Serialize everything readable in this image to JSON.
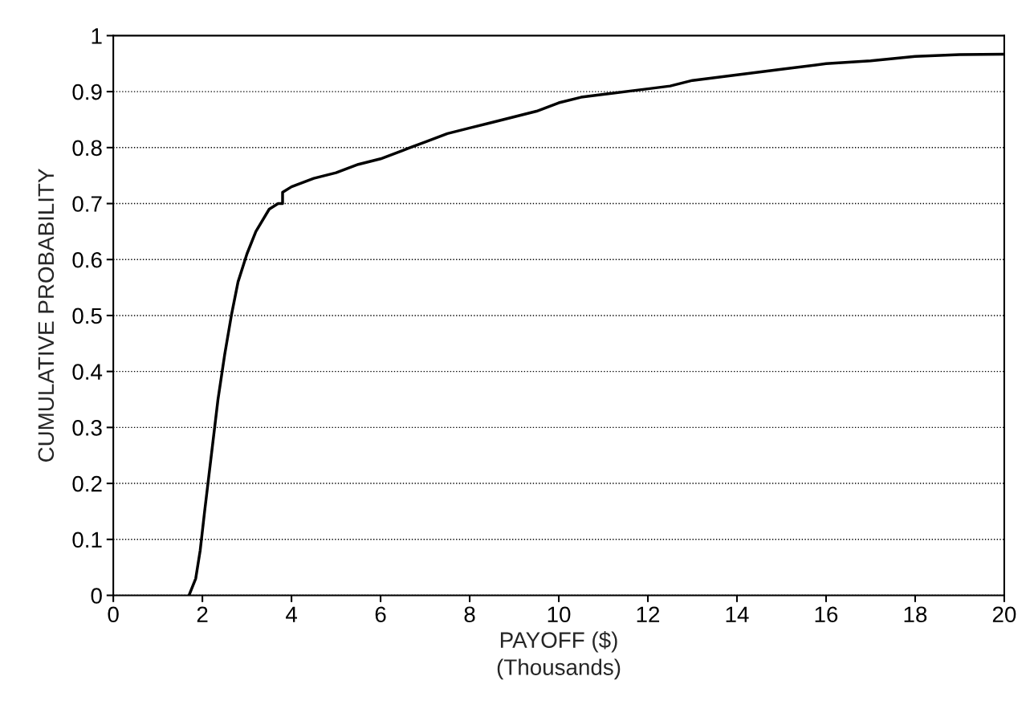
{
  "chart_data": {
    "type": "line",
    "xlabel": "PAYOFF ($)\n(Thousands)",
    "ylabel": "CUMULATIVE PROBABILITY",
    "x": [
      1.7,
      1.85,
      1.95,
      2.05,
      2.2,
      2.35,
      2.5,
      2.65,
      2.8,
      3.0,
      3.2,
      3.5,
      3.7,
      3.8,
      3.8,
      4.0,
      4.5,
      5.0,
      5.5,
      6.0,
      6.5,
      7.0,
      7.5,
      8.0,
      8.5,
      9.0,
      9.5,
      10.0,
      10.5,
      11.0,
      12.0,
      12.5,
      13.0,
      14.0,
      15.0,
      16.0,
      17.0,
      18.0,
      19.0,
      20.0
    ],
    "series": [
      {
        "color": "#000000",
        "values": [
          0,
          0.03,
          0.08,
          0.15,
          0.25,
          0.35,
          0.43,
          0.5,
          0.56,
          0.61,
          0.65,
          0.69,
          0.7,
          0.7,
          0.72,
          0.73,
          0.745,
          0.755,
          0.77,
          0.78,
          0.795,
          0.81,
          0.825,
          0.835,
          0.845,
          0.855,
          0.865,
          0.88,
          0.89,
          0.895,
          0.905,
          0.91,
          0.92,
          0.93,
          0.94,
          0.95,
          0.955,
          0.963,
          0.966,
          0.967
        ]
      }
    ],
    "xlim": [
      0,
      20
    ],
    "ylim": [
      0,
      1
    ],
    "xticks": [
      0,
      2,
      4,
      6,
      8,
      10,
      12,
      14,
      16,
      18,
      20
    ],
    "yticks": [
      0,
      0.1,
      0.2,
      0.3,
      0.4,
      0.5,
      0.6,
      0.7,
      0.8,
      0.9,
      1
    ],
    "grid": "y",
    "marker": "none",
    "line_style": "solid"
  }
}
